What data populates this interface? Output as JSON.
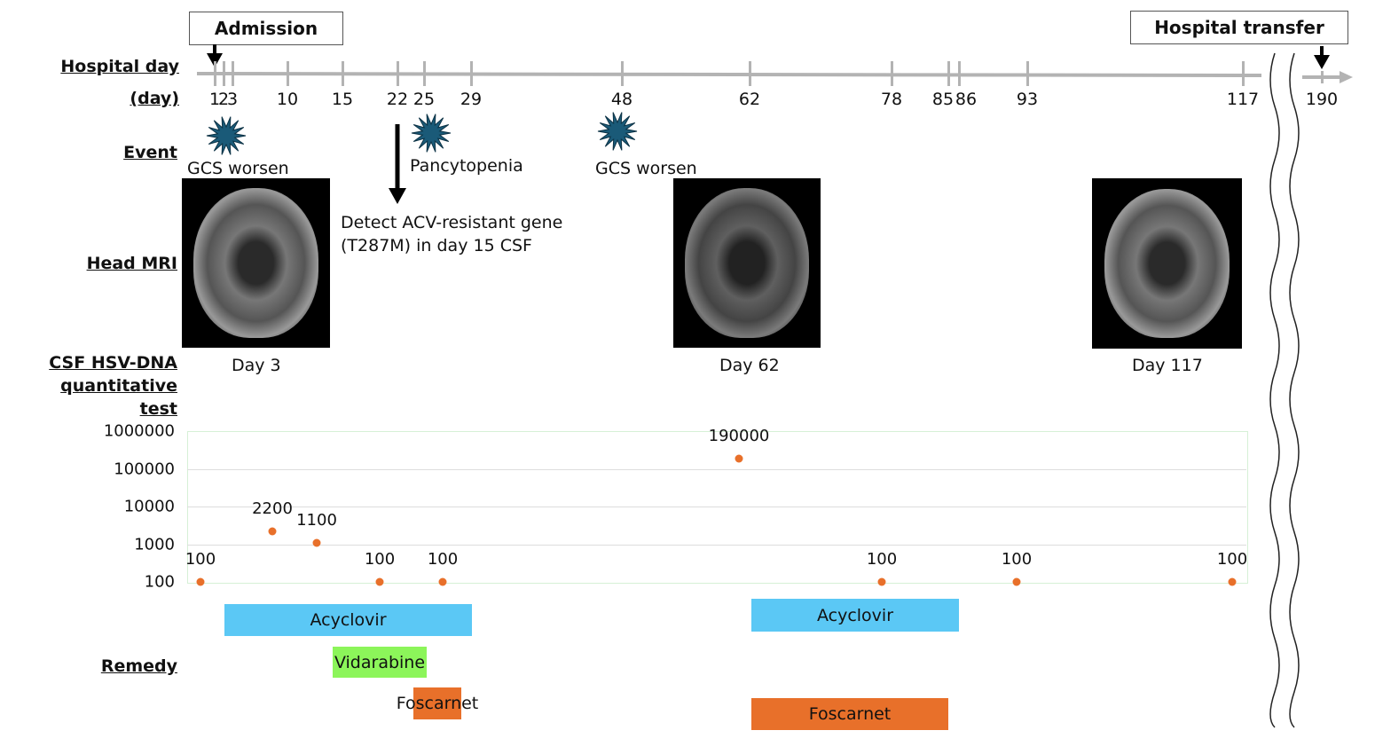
{
  "boxes": {
    "admission": "Admission",
    "transfer": "Hospital transfer"
  },
  "row_labels": {
    "hospital_day": "Hospital day",
    "day_unit": "(day)",
    "event": "Event",
    "head_mri": "Head MRI",
    "csf1": "CSF HSV-DNA",
    "csf2": "quantitative",
    "csf3": "test",
    "remedy": "Remedy"
  },
  "axis_days": [
    "1",
    "2",
    "3",
    "10",
    "15",
    "22",
    "25",
    "29",
    "48",
    "62",
    "78",
    "85",
    "86",
    "93",
    "117",
    "190"
  ],
  "events": [
    {
      "label": "GCS worsen"
    },
    {
      "label": "Pancytopenia"
    },
    {
      "label": "GCS worsen"
    }
  ],
  "annotation": {
    "line1": "Detect ACV-resistant gene",
    "line2": "(T287M) in day 15 CSF"
  },
  "mri": [
    {
      "caption": "Day 3"
    },
    {
      "caption": "Day 62"
    },
    {
      "caption": "Day 117"
    }
  ],
  "colors": {
    "axis": "#b3b3b3",
    "event_star": "#1a5a78",
    "dot": "#e8702a",
    "acyclovir": "#5bc8f5",
    "vidarabine": "#8cf55a",
    "foscarnet": "#e8702a"
  },
  "chart_data": {
    "type": "scatter",
    "yscale": "log",
    "ylim": [
      100,
      1000000
    ],
    "yticks": [
      "1000000",
      "100000",
      "10000",
      "1000",
      "100"
    ],
    "values": [
      100,
      2200,
      1100,
      100,
      100,
      190000,
      100,
      100,
      100
    ],
    "labels": [
      "100",
      "2200",
      "1100",
      "100",
      "100",
      "190000",
      "100",
      "100",
      "100"
    ]
  },
  "remedies": [
    {
      "name": "Acyclovir"
    },
    {
      "name": "Vidarabine"
    },
    {
      "name": "Foscarnet"
    },
    {
      "name": "Acyclovir"
    },
    {
      "name": "Foscarnet"
    }
  ]
}
